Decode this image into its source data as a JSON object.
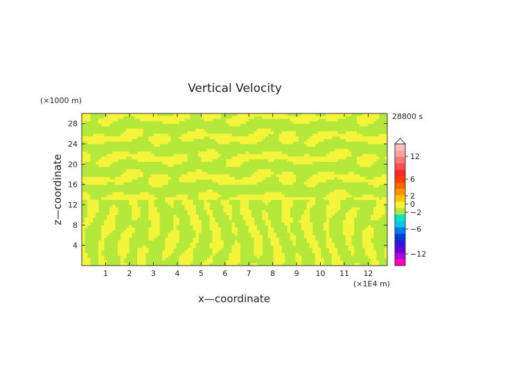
{
  "chart_data": {
    "type": "heatmap",
    "title": "Vertical Velocity",
    "time_label": "28800 s",
    "xlabel": "x—coordinate",
    "ylabel": "z—coordinate",
    "x_unit": "(×1E4 m)",
    "y_unit": "(×1000 m)",
    "xlim": [
      0,
      12.8
    ],
    "ylim": [
      0,
      30
    ],
    "x_ticks": [
      1,
      2,
      3,
      4,
      5,
      6,
      7,
      8,
      9,
      10,
      11,
      12
    ],
    "y_ticks": [
      4,
      8,
      12,
      16,
      20,
      24,
      28
    ],
    "grid": false,
    "field_colors": {
      "near_zero_negative": "#b4e83a",
      "near_zero_positive": "#f4f43a"
    },
    "colorbar": {
      "labels": [
        "12",
        "6",
        "2",
        "0",
        "−2",
        "−6",
        "−12"
      ],
      "levels": [
        12,
        6,
        2,
        0,
        -2,
        -6,
        -12
      ],
      "colors": [
        "#ff00b4",
        "#b400dc",
        "#6400dc",
        "#3214dc",
        "#003cdc",
        "#0078f0",
        "#00c8f0",
        "#00e6c8",
        "#b4e83a",
        "#f4f43a",
        "#ffc800",
        "#ff9600",
        "#ff6400",
        "#ff3c00",
        "#ff2828",
        "#ff5050",
        "#ff7878",
        "#ffa0a0",
        "#ffbebe"
      ]
    }
  }
}
